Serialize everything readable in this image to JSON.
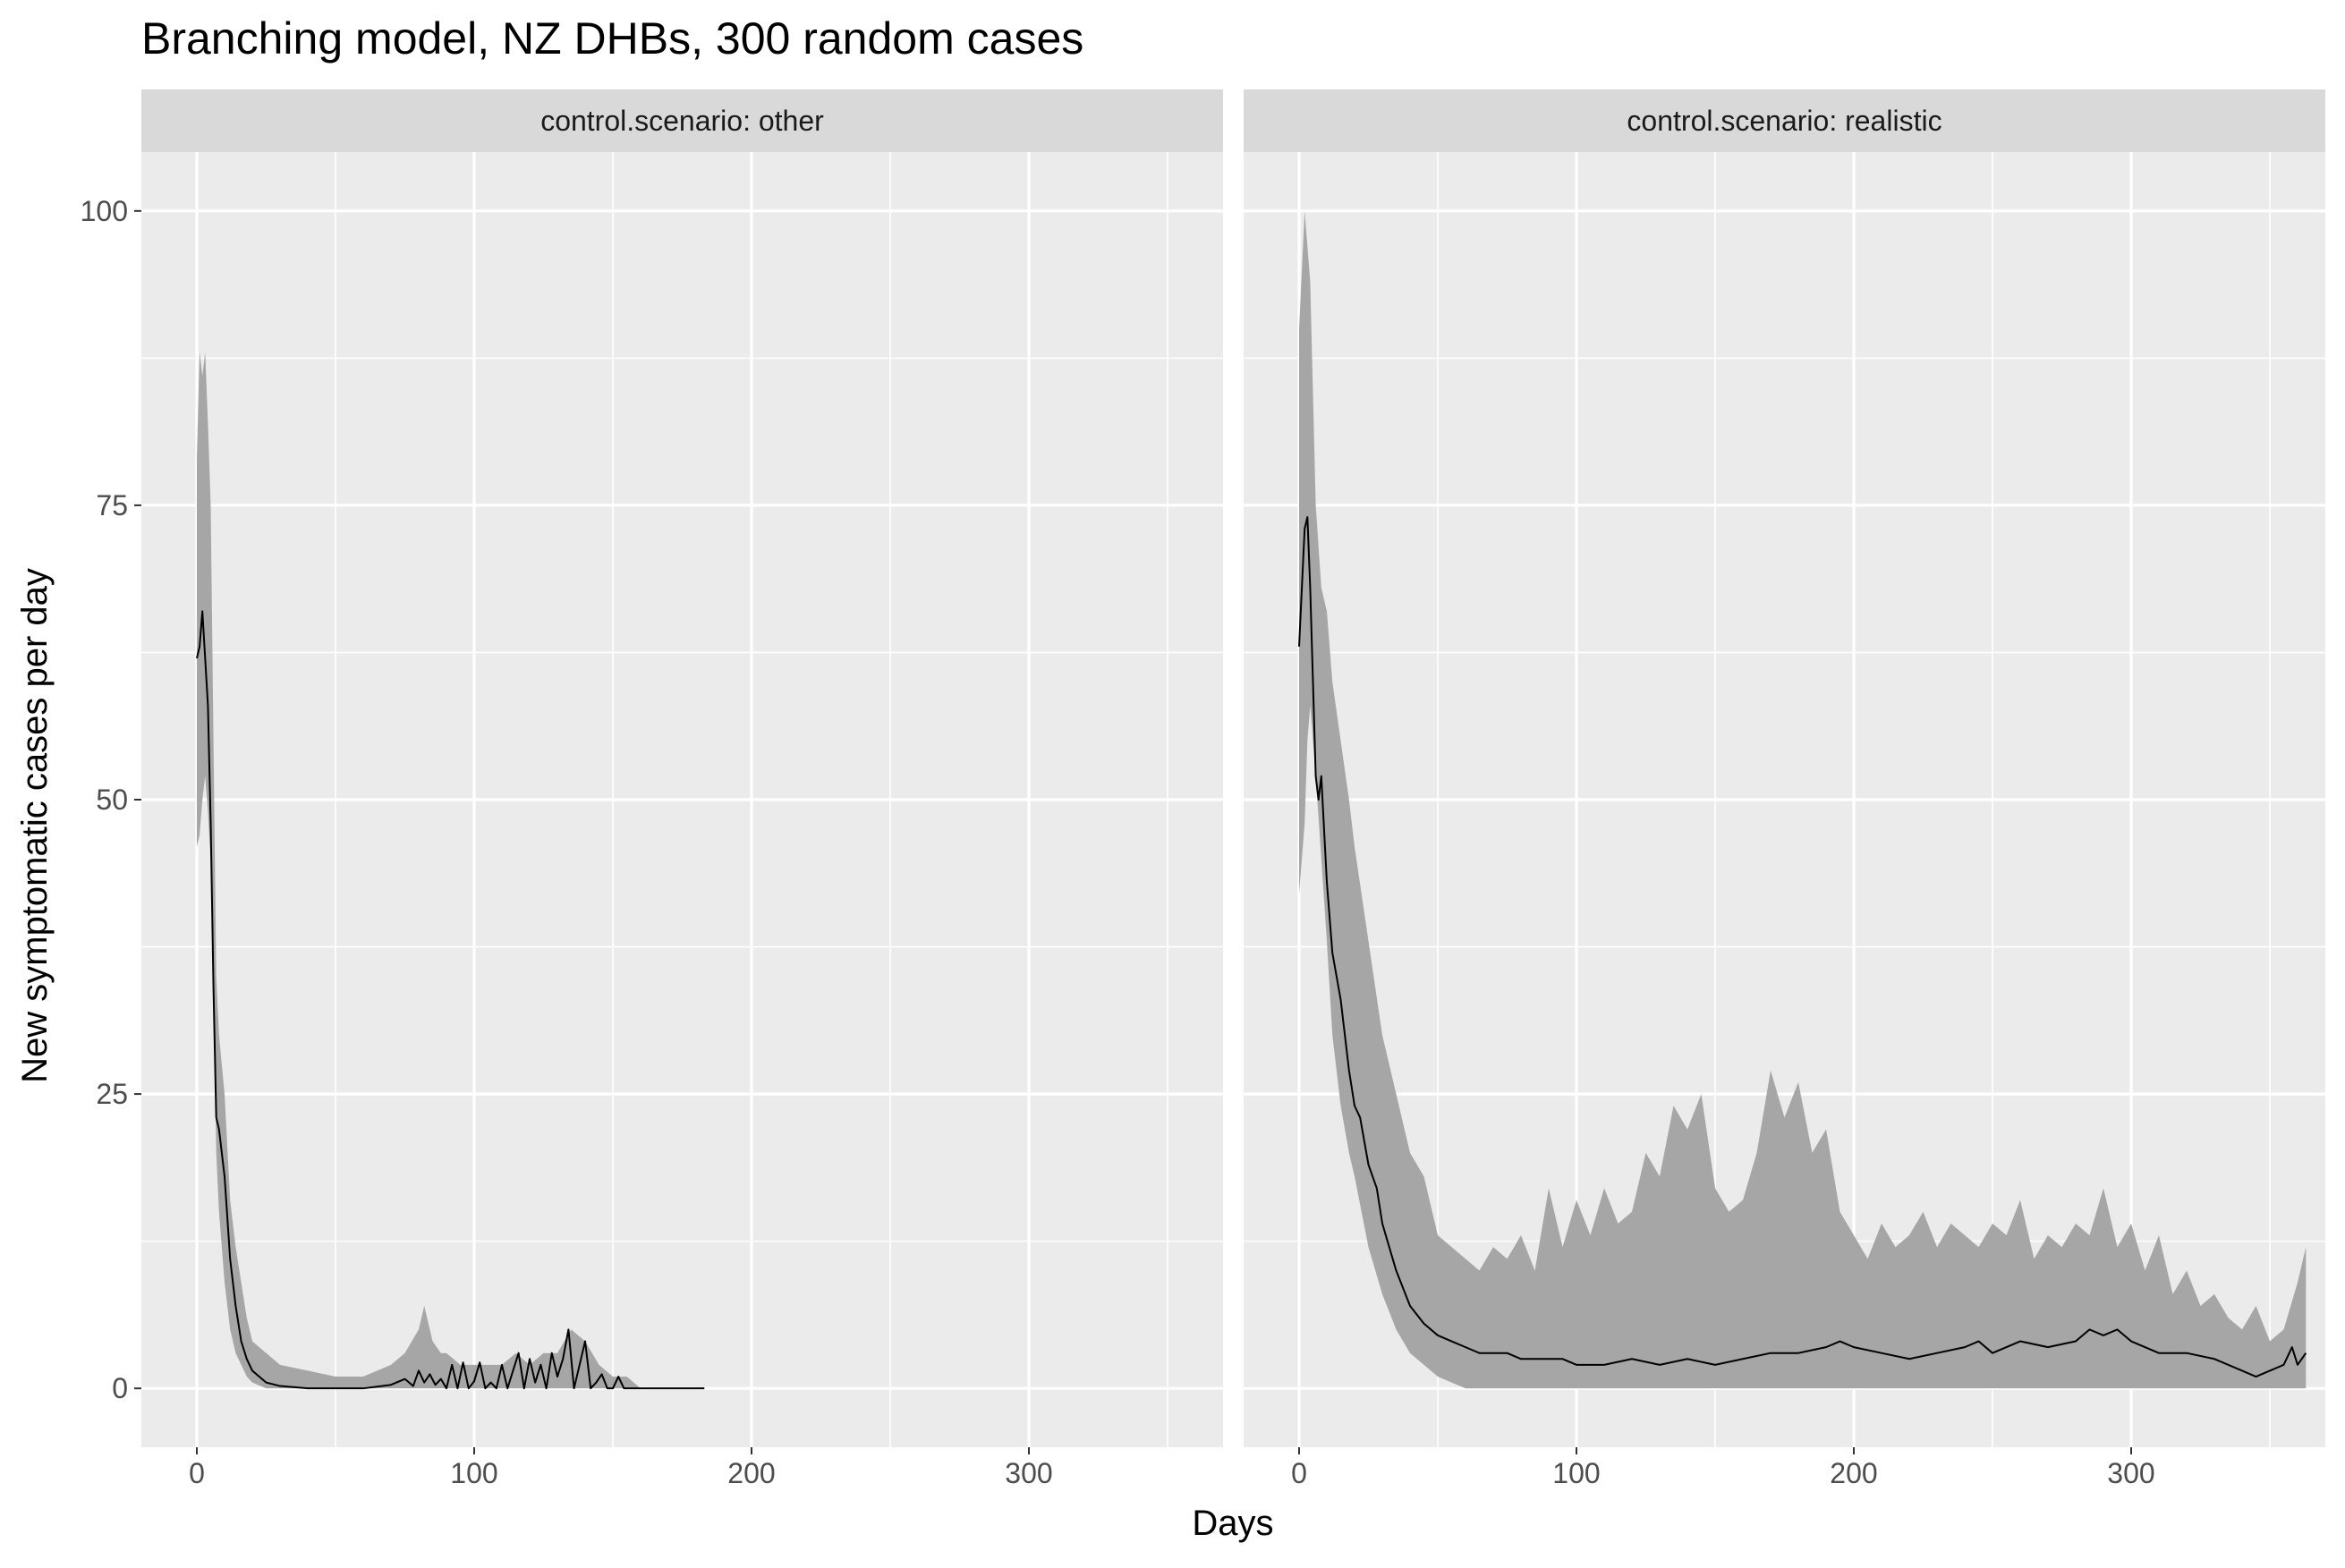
{
  "chart_data": {
    "type": "area",
    "title": "Branching model, NZ DHBs, 300 random cases",
    "xlabel": "Days",
    "ylabel": "New symptomatic cases per day",
    "xlim": [
      -20,
      370
    ],
    "ylim": [
      -5,
      105
    ],
    "x_ticks": [
      0,
      100,
      200,
      300
    ],
    "y_ticks": [
      0,
      25,
      50,
      75,
      100
    ],
    "grid": true,
    "legend": "none",
    "colors": {
      "panel_background": "#ebebeb",
      "strip_background": "#d9d9d9",
      "grid": "#ffffff",
      "ribbon": "#a6a6a6",
      "line": "#000000"
    },
    "facets": [
      {
        "label": "control.scenario: other",
        "ribbon": {
          "x": [
            0,
            1,
            2,
            3,
            4,
            5,
            6,
            7,
            8,
            10,
            12,
            14,
            16,
            18,
            20,
            25,
            30,
            40,
            50,
            60,
            70,
            75,
            80,
            82,
            85,
            88,
            90,
            95,
            100,
            105,
            110,
            115,
            120,
            125,
            130,
            135,
            140,
            145,
            150,
            155,
            160,
            170,
            183
          ],
          "low": [
            46,
            47,
            50,
            52,
            49,
            45,
            35,
            20,
            15,
            9,
            5,
            3,
            2,
            1,
            0.5,
            0,
            0,
            0,
            0,
            0,
            0,
            0,
            0,
            0,
            0,
            0,
            0,
            0,
            0,
            0,
            0,
            0,
            0,
            0,
            0,
            0,
            0,
            0,
            0,
            0,
            0,
            0,
            0
          ],
          "high": [
            79,
            88,
            86,
            88,
            82,
            75,
            55,
            35,
            30,
            25,
            16,
            12,
            9,
            6,
            4,
            3,
            2,
            1.5,
            1,
            1,
            2,
            3,
            5,
            7,
            4,
            3,
            3,
            2,
            2,
            2,
            2,
            3,
            2,
            3,
            3,
            5,
            4,
            2,
            1,
            1,
            0,
            0,
            0
          ]
        },
        "line": {
          "x": [
            0,
            1,
            2,
            3,
            4,
            5,
            6,
            7,
            8,
            10,
            12,
            14,
            16,
            18,
            20,
            25,
            30,
            40,
            50,
            60,
            70,
            75,
            78,
            80,
            82,
            84,
            86,
            88,
            90,
            92,
            94,
            96,
            98,
            100,
            102,
            104,
            106,
            108,
            110,
            112,
            114,
            116,
            118,
            120,
            122,
            124,
            126,
            128,
            130,
            132,
            134,
            136,
            138,
            140,
            142,
            144,
            146,
            148,
            150,
            152,
            154,
            156,
            160,
            170,
            183
          ],
          "y": [
            62,
            63,
            66,
            62,
            58,
            48,
            34,
            23,
            22,
            18,
            11,
            7,
            4,
            2.5,
            1.5,
            0.5,
            0.2,
            0,
            0,
            0,
            0.3,
            0.8,
            0.2,
            1.5,
            0.5,
            1.2,
            0.3,
            0.8,
            0,
            2,
            0,
            2.2,
            0,
            0.6,
            2.2,
            0,
            0.5,
            0,
            2,
            0,
            1.5,
            3,
            0,
            2.5,
            0.5,
            2,
            0,
            3,
            1,
            2.5,
            5,
            0,
            2,
            4,
            0,
            0.5,
            1.2,
            0,
            0,
            1,
            0,
            0,
            0,
            0,
            0
          ]
        }
      },
      {
        "label": "control.scenario: realistic",
        "ribbon": {
          "x": [
            0,
            2,
            3,
            4,
            6,
            8,
            10,
            12,
            15,
            18,
            20,
            25,
            30,
            35,
            40,
            45,
            50,
            55,
            60,
            65,
            70,
            75,
            80,
            85,
            90,
            95,
            100,
            105,
            110,
            115,
            120,
            125,
            130,
            135,
            140,
            145,
            150,
            155,
            160,
            165,
            170,
            175,
            180,
            185,
            190,
            195,
            200,
            205,
            210,
            215,
            220,
            225,
            230,
            235,
            240,
            245,
            250,
            255,
            260,
            265,
            270,
            275,
            280,
            285,
            290,
            295,
            300,
            305,
            310,
            315,
            320,
            325,
            330,
            335,
            340,
            345,
            350,
            355,
            360,
            363
          ],
          "low": [
            42,
            48,
            55,
            58,
            52,
            45,
            38,
            30,
            24,
            20,
            18,
            12,
            8,
            5,
            3,
            2,
            1,
            0.5,
            0,
            0,
            0,
            0,
            0,
            0,
            0,
            0,
            0,
            0,
            0,
            0,
            0,
            0,
            0,
            0,
            0,
            0,
            0,
            0,
            0,
            0,
            0,
            0,
            0,
            0,
            0,
            0,
            0,
            0,
            0,
            0,
            0,
            0,
            0,
            0,
            0,
            0,
            0,
            0,
            0,
            0,
            0,
            0,
            0,
            0,
            0,
            0,
            0,
            0,
            0,
            0,
            0,
            0,
            0,
            0,
            0,
            0,
            0,
            0,
            0,
            0
          ],
          "high": [
            90,
            100,
            97,
            94,
            75,
            68,
            66,
            60,
            55,
            50,
            46,
            38,
            30,
            25,
            20,
            18,
            13,
            12,
            11,
            10,
            12,
            11,
            13,
            10,
            17,
            12,
            16,
            13,
            17,
            14,
            15,
            20,
            18,
            24,
            22,
            25,
            17,
            15,
            16,
            20,
            27,
            23,
            26,
            20,
            22,
            15,
            13,
            11,
            14,
            12,
            13,
            15,
            12,
            14,
            13,
            12,
            14,
            13,
            16,
            11,
            13,
            12,
            14,
            13,
            17,
            12,
            14,
            10,
            13,
            8,
            10,
            7,
            8,
            6,
            5,
            7,
            4,
            5,
            9,
            12
          ]
        },
        "line": {
          "x": [
            0,
            1,
            2,
            3,
            4,
            5,
            6,
            7,
            8,
            10,
            12,
            15,
            18,
            20,
            22,
            25,
            28,
            30,
            35,
            40,
            45,
            50,
            55,
            60,
            65,
            70,
            75,
            80,
            85,
            90,
            95,
            100,
            110,
            120,
            130,
            140,
            150,
            160,
            170,
            180,
            190,
            195,
            200,
            210,
            220,
            230,
            240,
            245,
            250,
            260,
            270,
            280,
            285,
            290,
            295,
            300,
            310,
            320,
            330,
            340,
            345,
            350,
            355,
            358,
            360,
            363
          ],
          "y": [
            63,
            68,
            73,
            74,
            68,
            60,
            52,
            50,
            52,
            43,
            37,
            33,
            27,
            24,
            23,
            19,
            17,
            14,
            10,
            7,
            5.5,
            4.5,
            4,
            3.5,
            3,
            3,
            3,
            2.5,
            2.5,
            2.5,
            2.5,
            2,
            2,
            2.5,
            2,
            2.5,
            2,
            2.5,
            3,
            3,
            3.5,
            4,
            3.5,
            3,
            2.5,
            3,
            3.5,
            4,
            3,
            4,
            3.5,
            4,
            5,
            4.5,
            5,
            4,
            3,
            3,
            2.5,
            1.5,
            1,
            1.5,
            2,
            3.5,
            2,
            3
          ]
        }
      }
    ]
  }
}
